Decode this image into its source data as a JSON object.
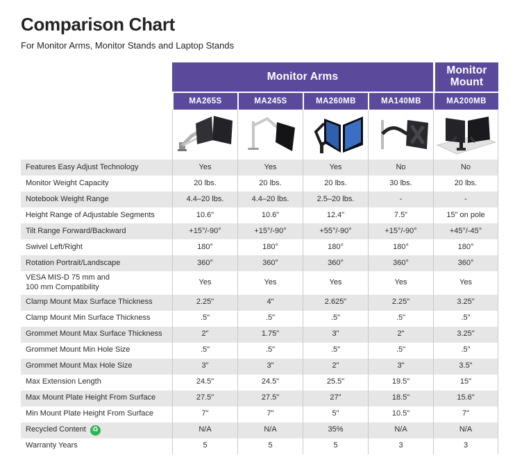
{
  "page": {
    "title": "Comparison Chart",
    "subtitle": "For Monitor Arms, Monitor Stands and Laptop Stands"
  },
  "table": {
    "groups": [
      {
        "label": "Monitor Arms",
        "span": 4
      },
      {
        "label": "Monitor Mount",
        "span": 1
      }
    ],
    "models": [
      "MA265S",
      "MA245S",
      "MA260MB",
      "MA140MB",
      "MA200MB"
    ],
    "product_images": [
      "dual-monitor-arm-silver",
      "single-monitor-arm-silver",
      "dual-monitor-arm-black-blue-screens",
      "single-monitor-arm-vesa-plate",
      "dual-monitor-pole-mount-on-desk"
    ],
    "rows": [
      {
        "label": "Features Easy Adjust Technology",
        "values": [
          "Yes",
          "Yes",
          "Yes",
          "No",
          "No"
        ]
      },
      {
        "label": "Monitor Weight Capacity",
        "values": [
          "20 lbs.",
          "20 lbs.",
          "20 lbs.",
          "30 lbs.",
          "20 lbs."
        ]
      },
      {
        "label": "Notebook Weight Range",
        "values": [
          "4.4–20 lbs.",
          "4.4–20 lbs.",
          "2.5–20 lbs.",
          "-",
          "-"
        ]
      },
      {
        "label": "Height Range of Adjustable Segments",
        "values": [
          "10.6\"",
          "10.6\"",
          "12.4\"",
          "7.5\"",
          "15\" on pole"
        ]
      },
      {
        "label": "Tilt Range Forward/Backward",
        "values": [
          "+15°/-90°",
          "+15°/-90°",
          "+55°/-90°",
          "+15°/-90°",
          "+45°/-45°"
        ]
      },
      {
        "label": "Swivel Left/Right",
        "values": [
          "180°",
          "180°",
          "180°",
          "180°",
          "180°"
        ]
      },
      {
        "label": "Rotation Portrait/Landscape",
        "values": [
          "360°",
          "360°",
          "360°",
          "360°",
          "360°"
        ]
      },
      {
        "label": "VESA MIS-D 75 mm and\n100 mm Compatibility",
        "values": [
          "Yes",
          "Yes",
          "Yes",
          "Yes",
          "Yes"
        ]
      },
      {
        "label": "Clamp Mount Max Surface Thickness",
        "values": [
          "2.25\"",
          "4\"",
          "2.625\"",
          "2.25\"",
          "3.25\""
        ]
      },
      {
        "label": "Clamp Mount Min Surface Thickness",
        "values": [
          ".5\"",
          ".5\"",
          ".5\"",
          ".5\"",
          ".5\""
        ]
      },
      {
        "label": "Grommet Mount Max Surface Thickness",
        "values": [
          "2\"",
          "1.75\"",
          "3\"",
          "2\"",
          "3.25\""
        ]
      },
      {
        "label": "Grommet Mount Min Hole Size",
        "values": [
          ".5\"",
          ".5\"",
          ".5\"",
          ".5\"",
          ".5\""
        ]
      },
      {
        "label": "Grommet Mount Max Hole Size",
        "values": [
          "3\"",
          "3\"",
          "2\"",
          "3\"",
          "3.5\""
        ]
      },
      {
        "label": "Max Extension Length",
        "values": [
          "24.5\"",
          "24.5\"",
          "25.5\"",
          "19.5\"",
          "15\""
        ]
      },
      {
        "label": "Max Mount Plate Height From Surface",
        "values": [
          "27.5\"",
          "27.5\"",
          "27\"",
          "18.5\"",
          "15.6\""
        ]
      },
      {
        "label": "Min Mount Plate Height From Surface",
        "values": [
          "7\"",
          "7\"",
          "5\"",
          "10.5\"",
          "7\""
        ]
      },
      {
        "label": "Recycled Content",
        "icon": "recycle-icon",
        "values": [
          "N/A",
          "N/A",
          "35%",
          "N/A",
          "N/A"
        ]
      },
      {
        "label": "Warranty Years",
        "values": [
          "5",
          "5",
          "5",
          "3",
          "3"
        ]
      }
    ]
  },
  "icons": {
    "recycle_glyph": "♻"
  },
  "colors": {
    "header_purple": "#5b4a9c",
    "stripe_gray": "#e6e6e6",
    "divider_gray": "#c9c9c9",
    "recycle_green": "#2fb457",
    "text_dark": "#2b2b2b"
  }
}
